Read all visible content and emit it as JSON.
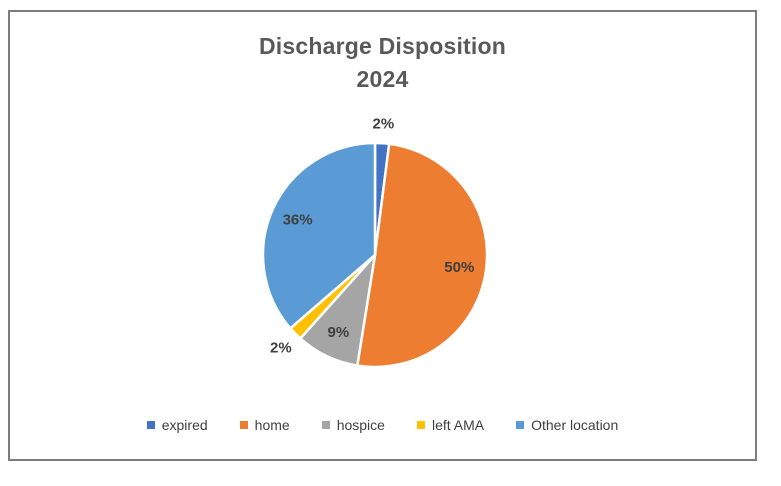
{
  "frame": {
    "border_color": "#7d7d7d",
    "background": "#ffffff"
  },
  "chart_data": {
    "type": "pie",
    "title": "Discharge Disposition",
    "subtitle": "2024",
    "categories": [
      "expired",
      "home",
      "hospice",
      "left AMA",
      "Other location"
    ],
    "values": [
      2,
      50,
      9,
      2,
      36
    ],
    "labels": [
      "2%",
      "50%",
      "9%",
      "2%",
      "36%"
    ],
    "colors": [
      "#4472C4",
      "#ED7D31",
      "#A5A5A5",
      "#FFC000",
      "#5B9BD5"
    ],
    "start_angle_deg": 0,
    "direction": "clockwise",
    "slice_border_color": "#FFFFFF",
    "title_color": "#595959",
    "label_color": "#3F3F3F",
    "legend_position": "bottom",
    "legend_text_color": "#404040",
    "small_slice_label_placement": "outside"
  }
}
